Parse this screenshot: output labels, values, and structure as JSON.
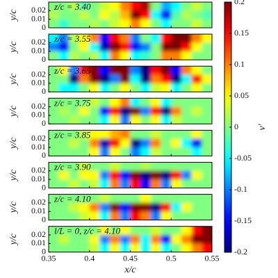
{
  "chart_data": {
    "type": "heatmap",
    "colormap": "jet",
    "xlabel": "x/c",
    "ylabel": "y/c",
    "colorbar_label": "v'",
    "xlim": [
      0.35,
      0.55
    ],
    "xticks": [
      0.35,
      0.4,
      0.45,
      0.5,
      0.55
    ],
    "ylim": [
      0,
      0.03
    ],
    "yticks": [
      0,
      0.01,
      0.02
    ],
    "clim": [
      -0.2,
      0.2
    ],
    "cticks": [
      -0.2,
      -0.15,
      -0.1,
      -0.05,
      0,
      0.05,
      0.1,
      0.15,
      0.2
    ],
    "panels": [
      {
        "annotation": "z/c = 3.40",
        "values": [
          [
            0,
            0,
            0.02,
            -0.02,
            0,
            0.03,
            0.05,
            0.1,
            0.15,
            0.18,
            0,
            -0.08,
            -0.05,
            0,
            0.03,
            0
          ],
          [
            0.02,
            0,
            0,
            0.03,
            0,
            0.05,
            0.02,
            0.08,
            0.2,
            0.15,
            -0.05,
            -0.15,
            -0.02,
            0.02,
            0,
            -0.02
          ],
          [
            0,
            -0.03,
            0,
            0,
            0.02,
            0,
            0.03,
            0.05,
            0.1,
            0.05,
            0,
            -0.05,
            0,
            0,
            0.03,
            0
          ]
        ]
      },
      {
        "annotation": "z/c = 3.55",
        "values": [
          [
            -0.05,
            -0.1,
            0.02,
            0.05,
            0.1,
            -0.15,
            0.15,
            0.1,
            -0.1,
            0,
            -0.05,
            0.15,
            0.2,
            0.2,
            0.1,
            0.05
          ],
          [
            -0.1,
            -0.15,
            0,
            0.05,
            -0.05,
            -0.18,
            0.2,
            0.15,
            -0.15,
            -0.1,
            0,
            0.2,
            0.2,
            0.15,
            0.05,
            0
          ],
          [
            0,
            -0.05,
            0.02,
            0,
            0.02,
            -0.05,
            0.1,
            0.05,
            -0.05,
            -0.03,
            0,
            0.1,
            0.1,
            0.05,
            0,
            0
          ]
        ]
      },
      {
        "annotation": "z/c = 3.65",
        "values": [
          [
            0,
            0.05,
            -0.1,
            0.15,
            0.2,
            -0.15,
            0.2,
            0.2,
            -0.1,
            -0.2,
            0.15,
            0.2,
            -0.15,
            0.1,
            0.05,
            0
          ],
          [
            0,
            0,
            -0.2,
            0.1,
            0.2,
            -0.2,
            -0.1,
            0.2,
            -0.05,
            -0.2,
            0.1,
            0.15,
            -0.2,
            -0.05,
            0.15,
            0.05
          ],
          [
            0,
            -0.05,
            -0.05,
            0,
            0.05,
            -0.05,
            0,
            0.05,
            0,
            -0.05,
            0.03,
            0.05,
            -0.05,
            0,
            0.05,
            0
          ]
        ]
      },
      {
        "annotation": "z/c = 3.75",
        "values": [
          [
            0,
            0,
            0,
            0,
            0.03,
            0,
            0.05,
            0.1,
            -0.05,
            0,
            0.05,
            -0.05,
            0,
            0,
            0,
            0
          ],
          [
            0,
            0.02,
            0,
            0.05,
            0,
            -0.15,
            0.15,
            -0.2,
            0.2,
            -0.1,
            0.15,
            -0.2,
            0.1,
            0,
            0.03,
            0
          ],
          [
            0,
            0,
            0.02,
            0,
            0,
            -0.05,
            0.05,
            -0.1,
            0.05,
            0,
            0.05,
            -0.05,
            0.03,
            0,
            0,
            0
          ]
        ]
      },
      {
        "annotation": "z/c = 3.85",
        "values": [
          [
            0,
            0,
            0,
            0.03,
            0.05,
            0.05,
            0.08,
            0.1,
            0,
            0,
            0.03,
            0,
            0,
            0,
            0.05,
            0
          ],
          [
            0,
            0,
            0.03,
            0,
            0.1,
            -0.18,
            0.15,
            0.05,
            -0.2,
            -0.1,
            0.1,
            0,
            0.05,
            -0.05,
            -0.15,
            0
          ],
          [
            0,
            0,
            0,
            0,
            0.05,
            -0.1,
            0.05,
            0,
            -0.1,
            -0.05,
            0.03,
            0,
            0,
            0,
            -0.05,
            0
          ]
        ]
      },
      {
        "annotation": "z/c = 3.90",
        "values": [
          [
            0,
            0,
            0,
            0.03,
            0,
            0,
            0.03,
            0,
            0,
            0.02,
            0,
            0,
            0,
            0,
            0,
            0
          ],
          [
            0,
            0.05,
            0,
            0.05,
            0.05,
            -0.1,
            0.15,
            -0.15,
            0.2,
            -0.2,
            0.2,
            -0.2,
            0.15,
            -0.1,
            0.05,
            0
          ],
          [
            0,
            0,
            0.03,
            0,
            0.03,
            -0.05,
            0.1,
            -0.1,
            0.15,
            -0.15,
            0.1,
            -0.1,
            0.05,
            0,
            0,
            0
          ]
        ]
      },
      {
        "annotation": "z/c = 4.10",
        "values": [
          [
            0,
            0,
            0,
            0,
            0,
            0.03,
            0,
            0,
            0,
            0.05,
            0,
            0,
            0,
            0,
            0,
            0
          ],
          [
            0,
            0,
            0.03,
            0.05,
            0.1,
            -0.1,
            0.2,
            -0.15,
            0.2,
            0.2,
            -0.2,
            0.15,
            -0.05,
            0.05,
            0,
            0
          ],
          [
            0,
            0,
            0,
            0.03,
            0.05,
            -0.05,
            0.1,
            -0.1,
            0.15,
            0.1,
            -0.1,
            0.05,
            0,
            0,
            0,
            0
          ]
        ]
      },
      {
        "annotation": "l/L = 0, z/c = 4.10",
        "values": [
          [
            0,
            0,
            0,
            0,
            0,
            0.05,
            0,
            0.05,
            0,
            0,
            0.03,
            0,
            0,
            0.05,
            0.15,
            0.2
          ],
          [
            0,
            0.03,
            0,
            0,
            0.05,
            -0.1,
            0.1,
            -0.1,
            0.1,
            -0.05,
            0.1,
            -0.15,
            0.05,
            0.1,
            0.2,
            0.2
          ],
          [
            0,
            0,
            0,
            0,
            0.03,
            -0.05,
            0.05,
            -0.05,
            0.05,
            -0.05,
            0.05,
            -0.05,
            0,
            0.05,
            0.1,
            0.15
          ]
        ]
      }
    ]
  }
}
